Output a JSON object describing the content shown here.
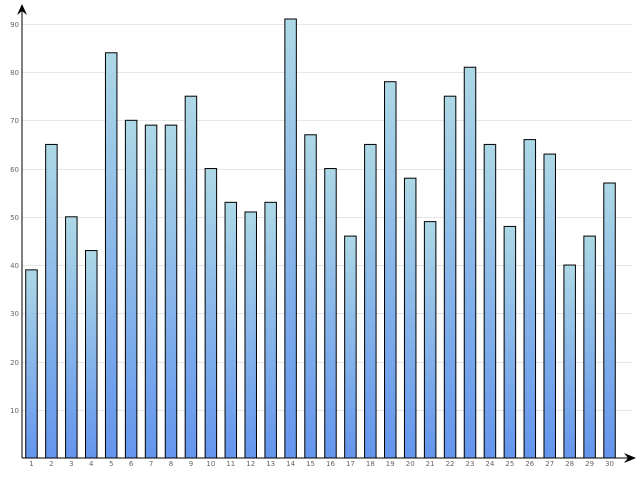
{
  "chart_data": {
    "type": "bar",
    "categories": [
      "1",
      "2",
      "3",
      "4",
      "5",
      "6",
      "7",
      "8",
      "9",
      "10",
      "11",
      "12",
      "13",
      "14",
      "15",
      "16",
      "17",
      "18",
      "19",
      "20",
      "21",
      "22",
      "23",
      "24",
      "25",
      "26",
      "27",
      "28",
      "29",
      "30"
    ],
    "values": [
      39,
      65,
      50,
      43,
      84,
      70,
      69,
      69,
      75,
      60,
      53,
      51,
      53,
      91,
      67,
      60,
      46,
      65,
      78,
      58,
      49,
      75,
      81,
      65,
      48,
      66,
      63,
      40,
      46,
      57
    ],
    "yticks": [
      "10",
      "20",
      "30",
      "40",
      "50",
      "60",
      "70",
      "80",
      "90"
    ],
    "ytick_values": [
      10,
      20,
      30,
      40,
      50,
      60,
      70,
      80,
      90
    ],
    "ylim": [
      0,
      91
    ],
    "grid": true,
    "legend": "none",
    "colors": {
      "bar_top": "#add8e6",
      "bar_bottom": "#6495ed",
      "grid": "#e6e6e6",
      "axis": "#000000"
    }
  }
}
